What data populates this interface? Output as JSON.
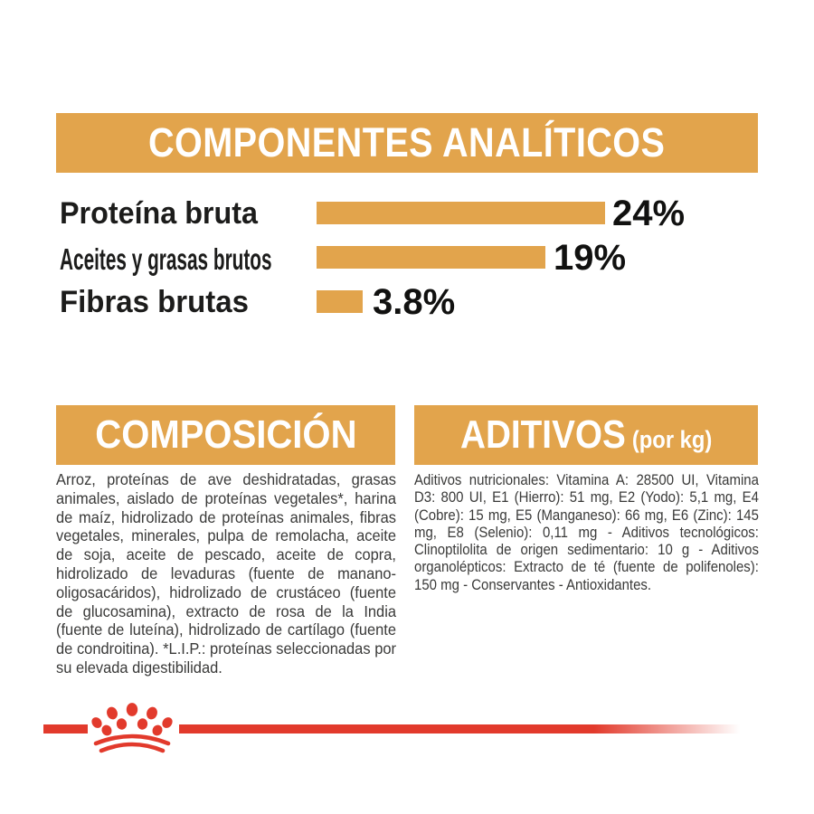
{
  "header": {
    "title": "COMPONENTES ANALÍTICOS"
  },
  "chart_data": {
    "type": "bar",
    "orientation": "horizontal",
    "title": "COMPONENTES ANALÍTICOS",
    "categories": [
      "Proteína bruta",
      "Aceites y grasas brutos",
      "Fibras brutas"
    ],
    "values": [
      24,
      19,
      3.8
    ],
    "value_labels": [
      "24%",
      "19%",
      "3.8%"
    ],
    "xlabel": "",
    "ylabel": "",
    "xlim": [
      0,
      30
    ],
    "grid": false,
    "legend": false,
    "bar_color": "#E2A44C"
  },
  "composition": {
    "title": "COMPOSICIÓN",
    "body": "Arroz, proteínas de ave deshidratadas, grasas animales, aislado de proteínas vegetales*, harina de maíz, hidrolizado de proteínas animales, fibras vegetales, minerales, pulpa de remolacha, aceite de soja, aceite de pescado, aceite de copra, hidrolizado de levaduras (fuente de manano-oligosacáridos), hidrolizado de crustáceo (fuente de glucosamina), extracto de rosa de la India (fuente de luteína), hidrolizado de cartílago (fuente de condroitina). *L.I.P.: proteínas seleccionadas por su elevada digestibilidad."
  },
  "additives": {
    "title": "ADITIVOS",
    "unit_suffix": "(por kg)",
    "body": "Aditivos nutricionales: Vitamina A: 28500 UI, Vitamina D3: 800 UI, E1 (Hierro): 51 mg, E2 (Yodo): 5,1 mg, E4 (Cobre): 15 mg, E5 (Manganeso): 66 mg, E6 (Zinc): 145 mg, E8 (Selenio): 0,11 mg - Aditivos tecnológicos: Clinoptilolita de origen sedimentario: 10 g - Aditivos organolépticos: Extracto de té (fuente de polifenoles): 150 mg - Conservantes - Antioxidantes."
  },
  "footer": {
    "logo_icon": "royal-canin-crown-icon",
    "line_color": "#E23A2C"
  },
  "colors": {
    "gold": "#E2A44C",
    "red": "#E23A2C",
    "body_text": "#3A3A39",
    "label_text": "#1C1C1B",
    "header_text": "#FFFFFF",
    "background": "#FFFFFF"
  }
}
